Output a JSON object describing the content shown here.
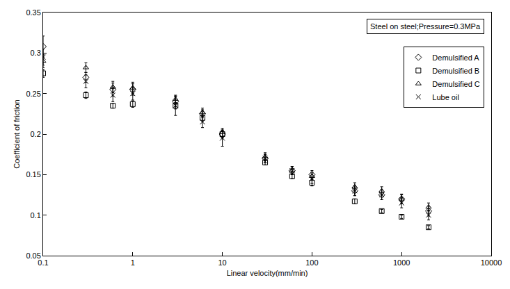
{
  "chart_data": {
    "type": "scatter",
    "x_label": "Linear velocity(mm/min)",
    "y_label": "Coefficient of friction",
    "annotations": [
      "Steel on steel;Pressure=0.3MPa"
    ],
    "log": "x",
    "grid": false,
    "legend": "top right",
    "xlim": [
      0.1,
      10000
    ],
    "xticks": [
      0.1,
      1,
      10,
      100,
      1000,
      10000
    ],
    "ylim": [
      0.05,
      0.35
    ],
    "yticks": [
      0.05,
      0.1,
      0.15,
      0.2,
      0.25,
      0.3,
      0.35
    ],
    "x": [
      0.1,
      0.3,
      0.6,
      1,
      3,
      6,
      10,
      30,
      60,
      100,
      300,
      600,
      1000,
      2000
    ],
    "series": [
      {
        "name": "Demulsified A",
        "color": "#000000",
        "marker": "diamond-open",
        "values": [
          0.308,
          0.27,
          0.255,
          0.255,
          0.24,
          0.225,
          0.2,
          0.17,
          0.155,
          0.15,
          0.13,
          0.125,
          0.12,
          0.105
        ],
        "error": [
          0.013,
          0.006,
          0.008,
          0.007,
          0.006,
          0.005,
          0.005,
          0.005,
          0.005,
          0.005,
          0.006,
          0.006,
          0.006,
          0.006
        ]
      },
      {
        "name": "Demulsified B",
        "color": "#000000",
        "marker": "square-open",
        "values": [
          0.275,
          0.248,
          0.235,
          0.237,
          0.235,
          0.22,
          0.2,
          0.165,
          0.148,
          0.14,
          0.117,
          0.105,
          0.098,
          0.085
        ],
        "error": [
          0.005,
          0.004,
          0.003,
          0.004,
          0.004,
          0.004,
          0.004,
          0.003,
          0.003,
          0.004,
          0.003,
          0.002,
          0.002,
          0.002
        ]
      },
      {
        "name": "Demulsified C",
        "color": "#000000",
        "marker": "triangle-up-open",
        "values": [
          0.29,
          0.282,
          0.258,
          0.257,
          0.243,
          0.227,
          0.202,
          0.172,
          0.155,
          0.148,
          0.135,
          0.13,
          0.12,
          0.11
        ],
        "error": [
          0.008,
          0.006,
          0.007,
          0.007,
          0.005,
          0.005,
          0.005,
          0.005,
          0.005,
          0.005,
          0.005,
          0.005,
          0.005,
          0.005
        ]
      },
      {
        "name": "Lube oil",
        "color": "#000000",
        "marker": "x-thin-open",
        "values": [
          0.295,
          0.265,
          0.248,
          0.25,
          0.235,
          0.215,
          0.195,
          0.17,
          0.155,
          0.145,
          0.13,
          0.125,
          0.115,
          0.1
        ],
        "error": [
          0.01,
          0.008,
          0.008,
          0.008,
          0.012,
          0.007,
          0.01,
          0.005,
          0.005,
          0.006,
          0.006,
          0.006,
          0.006,
          0.006
        ]
      }
    ]
  }
}
